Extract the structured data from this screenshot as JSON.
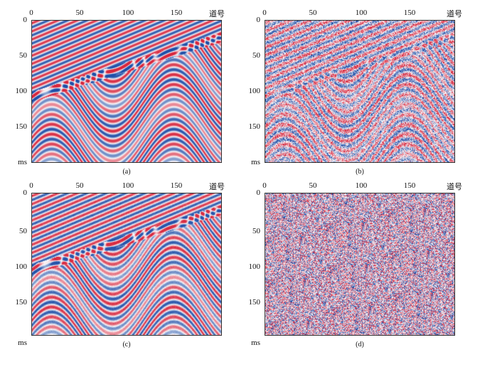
{
  "figure": {
    "x_axis_label": "道号",
    "y_axis_label": "ms",
    "x_ticks": [
      "0",
      "50",
      "100",
      "150"
    ],
    "y_ticks": [
      "0",
      "50",
      "100",
      "150"
    ],
    "panels": [
      {
        "caption": "(a)",
        "kind": "clean",
        "noise": 0.0
      },
      {
        "caption": "(b)",
        "kind": "noisy",
        "noise": 0.75
      },
      {
        "caption": "(c)",
        "kind": "denoised",
        "noise": 0.08
      },
      {
        "caption": "(d)",
        "kind": "residual",
        "noise": 1.0
      }
    ],
    "colors": {
      "positive": "#d7263d",
      "negative": "#1f4fa8",
      "zero": "#ffffff"
    }
  }
}
